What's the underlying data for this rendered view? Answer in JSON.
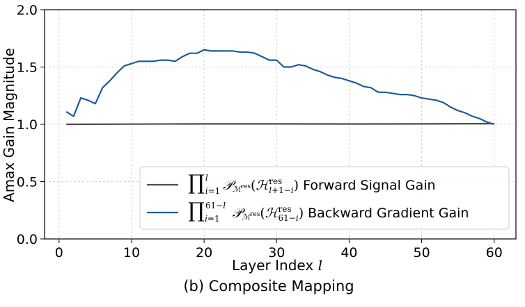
{
  "chart_data": {
    "type": "line",
    "xlabel": "Layer Index",
    "xlabel_var": "l",
    "ylabel": "Amax Gain Magnitude",
    "caption": "(b) Composite Mapping",
    "xlim": [
      -2,
      63
    ],
    "ylim": [
      0.0,
      2.0
    ],
    "xticks": [
      0,
      10,
      20,
      30,
      40,
      50,
      60
    ],
    "yticks": [
      0.0,
      0.5,
      1.0,
      1.5,
      2.0
    ],
    "grid": true,
    "legend_position": "lower-right",
    "series": [
      {
        "name": "Forward Signal Gain",
        "formula": "∏_{i=1}^{l} P_{M^res}(H^res_{l+1−i})",
        "color": "#4d4d4d",
        "x": [
          1,
          10,
          20,
          30,
          40,
          50,
          60
        ],
        "y": [
          1.0,
          1.002,
          1.004,
          1.004,
          1.003,
          1.004,
          1.006
        ]
      },
      {
        "name": "Backward Gradient Gain",
        "formula": "∏_{i=1}^{61−l} P_{M^res}(H^res_{61−i})",
        "color": "#1f5a9a",
        "x": [
          1,
          2,
          3,
          4,
          5,
          6,
          7,
          8,
          9,
          10,
          11,
          12,
          13,
          14,
          15,
          16,
          17,
          18,
          19,
          20,
          21,
          22,
          23,
          24,
          25,
          26,
          27,
          28,
          29,
          30,
          31,
          32,
          33,
          34,
          35,
          36,
          37,
          38,
          39,
          40,
          41,
          42,
          43,
          44,
          45,
          46,
          47,
          48,
          49,
          50,
          51,
          52,
          53,
          54,
          55,
          56,
          57,
          58,
          59,
          60
        ],
        "y": [
          1.11,
          1.07,
          1.23,
          1.21,
          1.18,
          1.32,
          1.38,
          1.45,
          1.51,
          1.53,
          1.55,
          1.55,
          1.55,
          1.56,
          1.56,
          1.55,
          1.59,
          1.62,
          1.62,
          1.65,
          1.64,
          1.64,
          1.64,
          1.64,
          1.63,
          1.63,
          1.62,
          1.59,
          1.56,
          1.56,
          1.5,
          1.5,
          1.52,
          1.51,
          1.48,
          1.46,
          1.43,
          1.41,
          1.4,
          1.38,
          1.36,
          1.33,
          1.32,
          1.28,
          1.28,
          1.27,
          1.26,
          1.26,
          1.25,
          1.23,
          1.22,
          1.21,
          1.19,
          1.15,
          1.12,
          1.1,
          1.07,
          1.05,
          1.02,
          1.0
        ]
      }
    ]
  }
}
